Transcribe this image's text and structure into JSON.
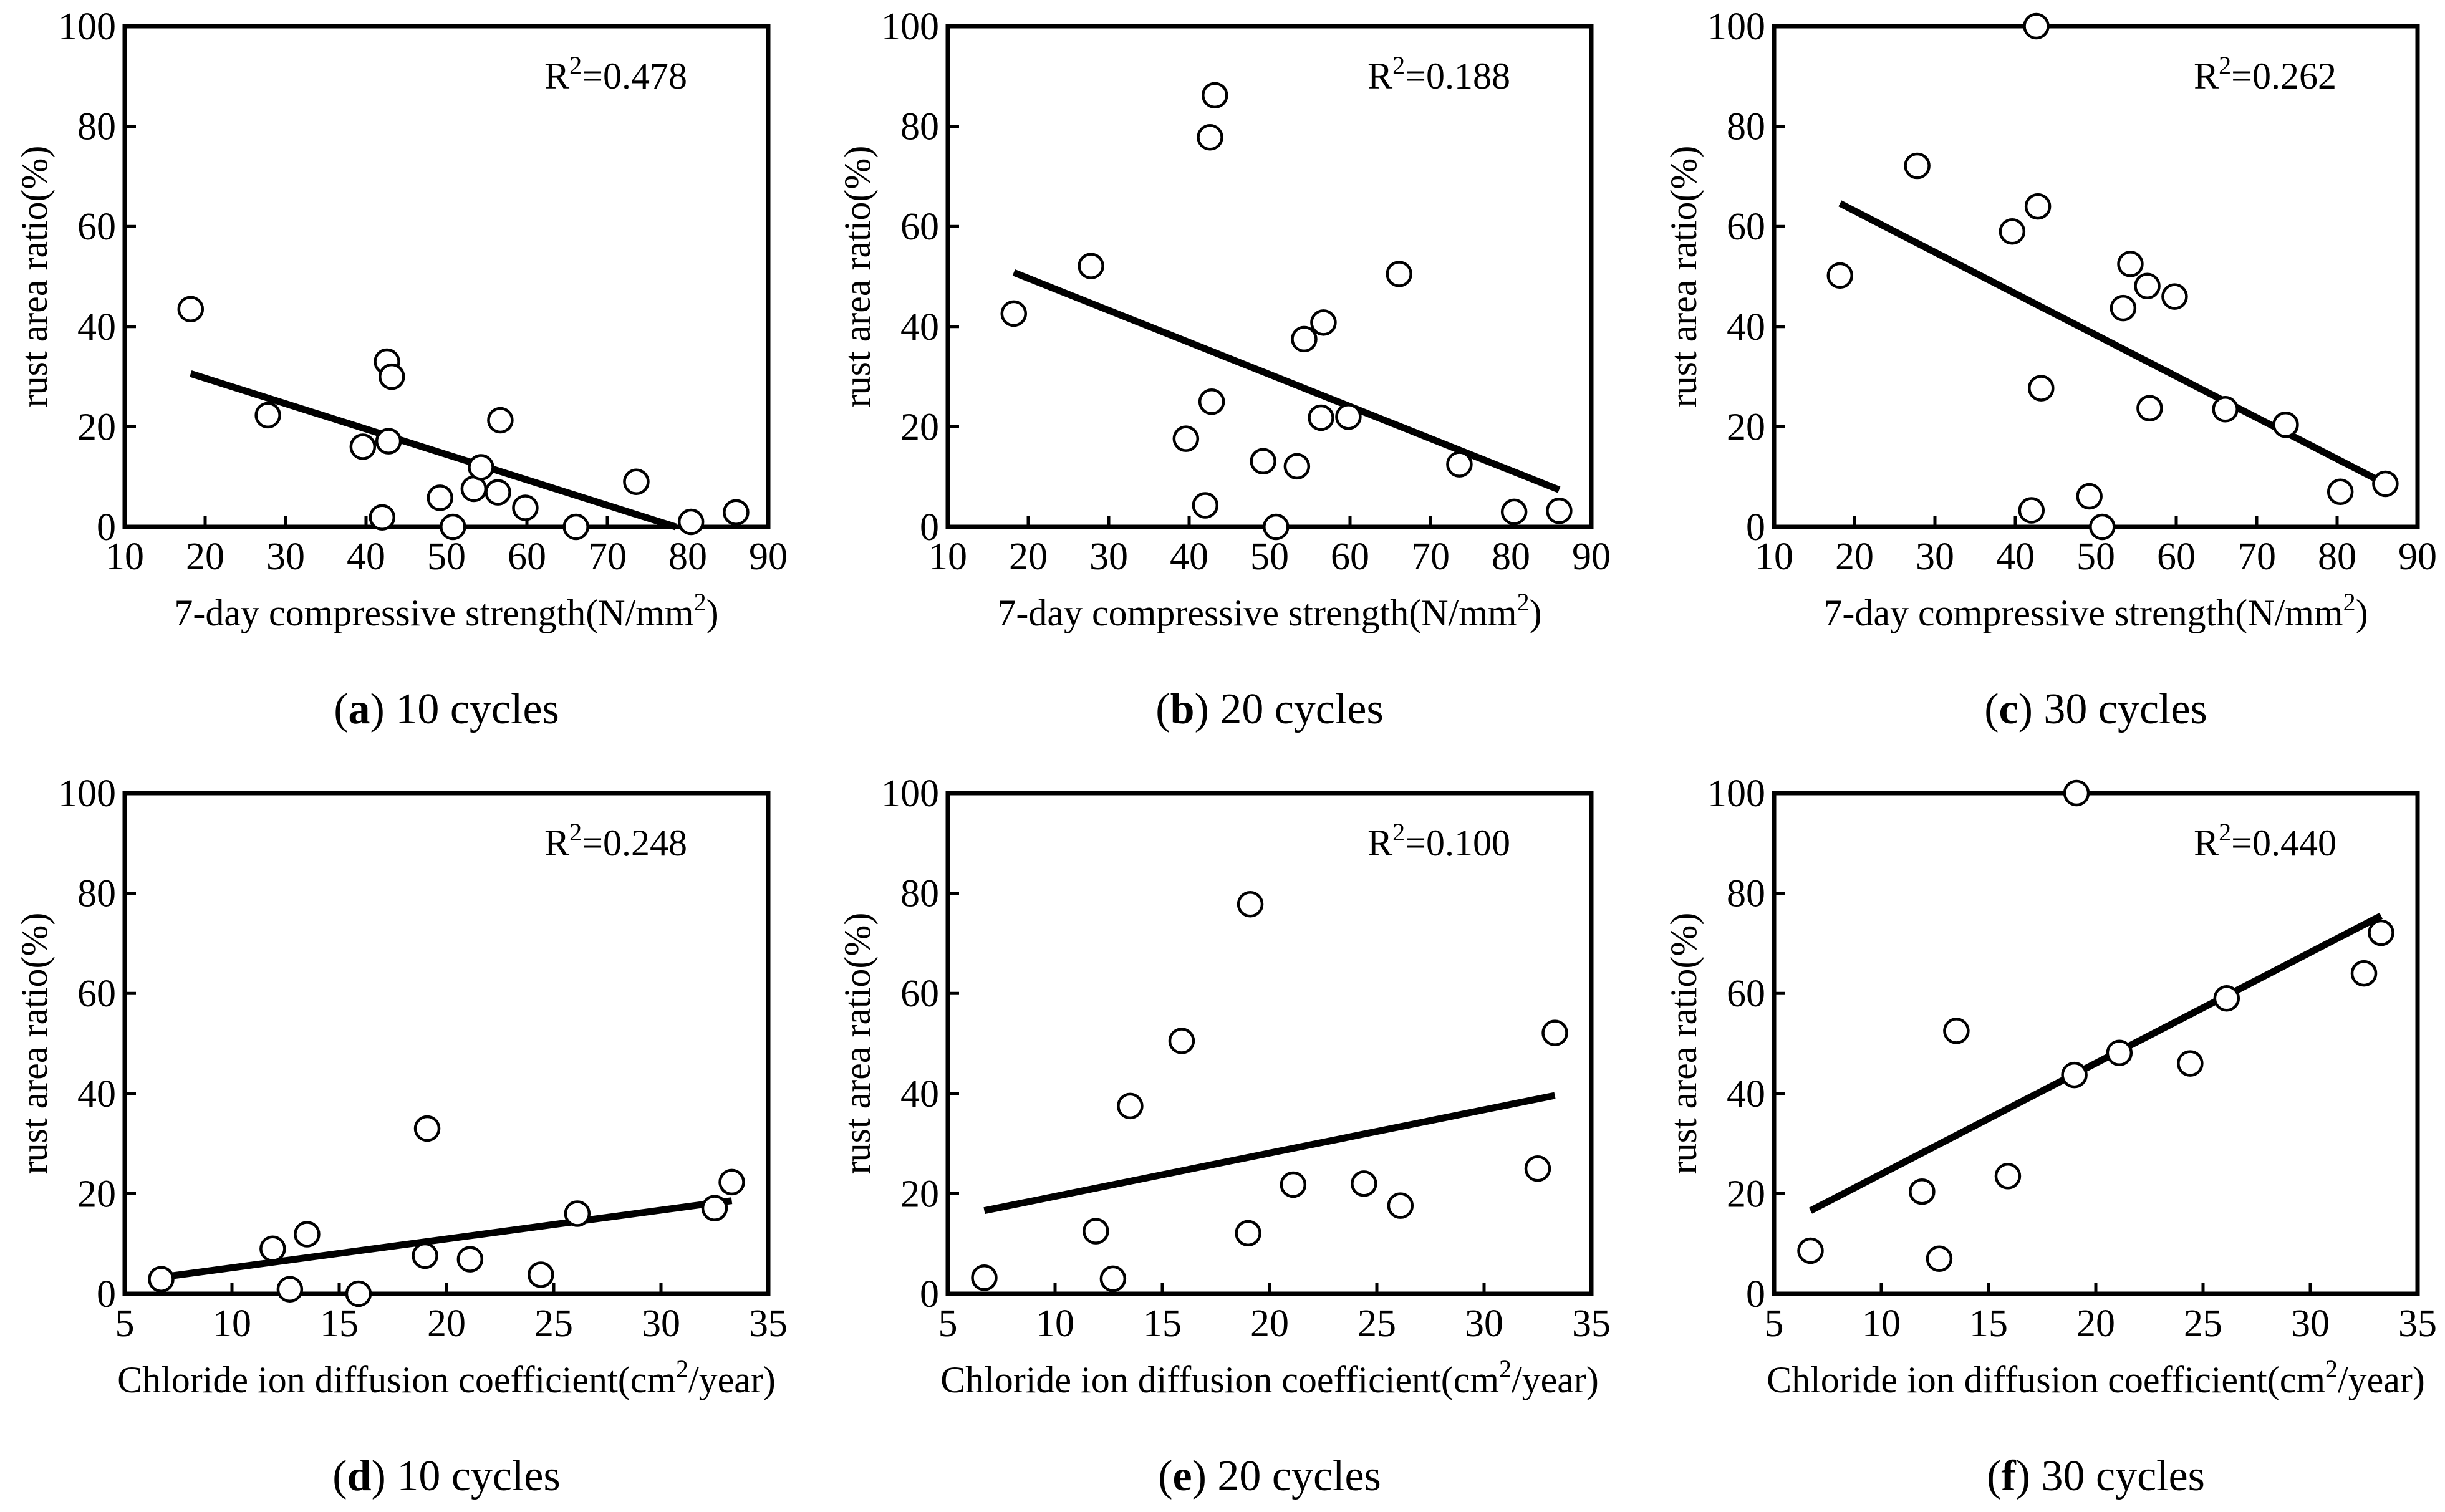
{
  "figure": {
    "panels": [
      {
        "panel_letter": "a",
        "caption_rest": " 10 cycles",
        "r2_prefix": "R",
        "r2_exp": "2",
        "r2_value": "=0.478"
      },
      {
        "panel_letter": "b",
        "caption_rest": " 20 cycles",
        "r2_prefix": "R",
        "r2_exp": "2",
        "r2_value": "=0.188"
      },
      {
        "panel_letter": "c",
        "caption_rest": " 30 cycles",
        "r2_prefix": "R",
        "r2_exp": "2",
        "r2_value": "=0.262"
      },
      {
        "panel_letter": "d",
        "caption_rest": " 10 cycles",
        "r2_prefix": "R",
        "r2_exp": "2",
        "r2_value": "=0.248"
      },
      {
        "panel_letter": "e",
        "caption_rest": " 20 cycles",
        "r2_prefix": "R",
        "r2_exp": "2",
        "r2_value": "=0.100"
      },
      {
        "panel_letter": "f",
        "caption_rest": " 30 cycles",
        "r2_prefix": "R",
        "r2_exp": "2",
        "r2_value": "=0.440"
      }
    ]
  },
  "chart_data": [
    {
      "type": "scatter",
      "panel": "a",
      "caption": "(a) 10 cycles",
      "r2": "R2=0.478",
      "xlabel": "7-day compressive strength(N/mm2)",
      "xlabel_main": "7-day compressive strength(N/mm",
      "xlabel_sup": "2",
      "xlabel_end": ")",
      "ylabel": "rust area ratio(%)",
      "xlim": [
        10,
        90
      ],
      "ylim": [
        0,
        100
      ],
      "xticks": [
        10,
        20,
        30,
        40,
        50,
        60,
        70,
        80,
        90
      ],
      "yticks": [
        0,
        20,
        40,
        60,
        80,
        100
      ],
      "x": [
        18.2,
        27.8,
        39.6,
        42,
        42.6,
        42.8,
        43.2,
        49.2,
        50.8,
        53.4,
        54.3,
        56.4,
        56.7,
        59.8,
        66.1,
        73.6,
        80.4,
        86.0
      ],
      "y": [
        43.5,
        22.3,
        16.0,
        1.9,
        33.0,
        17.1,
        30.0,
        5.8,
        0.0,
        7.6,
        11.9,
        6.9,
        21.3,
        3.8,
        0.0,
        9.0,
        1.0,
        2.9
      ],
      "fit": {
        "x": [
          18.2,
          78.5
        ],
        "y": [
          30.6,
          0.0
        ]
      }
    },
    {
      "type": "scatter",
      "panel": "b",
      "caption": "(b) 20 cycles",
      "r2": "R2=0.188",
      "xlabel": "7-day compressive strength(N/mm2)",
      "xlabel_main": "7-day compressive strength(N/mm",
      "xlabel_sup": "2",
      "xlabel_end": ")",
      "ylabel": "rust area ratio(%)",
      "xlim": [
        10,
        90
      ],
      "ylim": [
        0,
        100
      ],
      "xticks": [
        10,
        20,
        30,
        40,
        50,
        60,
        70,
        80,
        90
      ],
      "yticks": [
        0,
        20,
        40,
        60,
        80,
        100
      ],
      "x": [
        18.2,
        27.8,
        39.6,
        42.0,
        42.6,
        42.8,
        43.2,
        49.2,
        50.8,
        53.4,
        54.3,
        56.4,
        56.7,
        59.8,
        66.1,
        73.6,
        80.4,
        86.0
      ],
      "y": [
        42.6,
        52.1,
        17.6,
        4.3,
        77.8,
        25.0,
        86.2,
        13.1,
        0.0,
        12.1,
        37.5,
        21.8,
        40.8,
        22.0,
        50.5,
        12.5,
        3.0,
        3.2
      ],
      "fit": {
        "x": [
          18.2,
          86.0
        ],
        "y": [
          50.8,
          7.4
        ]
      }
    },
    {
      "type": "scatter",
      "panel": "c",
      "caption": "(c) 30 cycles",
      "r2": "R2=0.262",
      "xlabel": "7-day compressive strength(N/mm2)",
      "xlabel_main": "7-day compressive strength(N/mm",
      "xlabel_sup": "2",
      "xlabel_end": ")",
      "ylabel": "rust area ratio(%)",
      "xlim": [
        10,
        90
      ],
      "ylim": [
        0,
        100
      ],
      "xticks": [
        10,
        20,
        30,
        40,
        50,
        60,
        70,
        80,
        90
      ],
      "yticks": [
        0,
        20,
        40,
        60,
        80,
        100
      ],
      "x": [
        18.2,
        27.8,
        39.6,
        42.0,
        42.6,
        42.8,
        43.2,
        49.2,
        50.8,
        53.4,
        54.3,
        56.4,
        56.7,
        59.8,
        66.1,
        73.6,
        80.4,
        86.0
      ],
      "y": [
        50.2,
        72.1,
        59.0,
        3.3,
        100.0,
        64.0,
        27.7,
        6.1,
        0.0,
        43.7,
        52.5,
        48.1,
        23.7,
        46.0,
        23.5,
        20.4,
        7.0,
        8.6
      ],
      "fit": {
        "x": [
          18.2,
          86.0
        ],
        "y": [
          64.6,
          8.6
        ]
      }
    },
    {
      "type": "scatter",
      "panel": "d",
      "caption": "(d) 10 cycles",
      "r2": "R2=0.248",
      "xlabel": "Chloride ion diffusion coefficient(cm2/year)",
      "xlabel_main": "Chloride ion diffusion coefficient(cm",
      "xlabel_sup": "2",
      "xlabel_end": "/year)",
      "ylabel": "rust area ratio(%)",
      "xlim": [
        5,
        35
      ],
      "ylim": [
        0,
        100
      ],
      "xticks": [
        5,
        10,
        15,
        20,
        25,
        30,
        35
      ],
      "yticks": [
        0,
        20,
        40,
        60,
        80,
        100
      ],
      "x": [
        6.7,
        11.9,
        12.7,
        13.5,
        15.9,
        19.0,
        19.1,
        21.1,
        24.4,
        26.1,
        32.5,
        33.3
      ],
      "y": [
        2.9,
        9.0,
        0.9,
        11.9,
        0.0,
        7.6,
        33.0,
        6.9,
        3.8,
        16.0,
        17.1,
        22.3
      ],
      "fit": {
        "x": [
          6.7,
          33.3
        ],
        "y": [
          3.3,
          18.6
        ]
      }
    },
    {
      "type": "scatter",
      "panel": "e",
      "caption": "(e) 20 cycles",
      "r2": "R2=0.100",
      "xlabel": "Chloride ion diffusion coefficient(cm2/year)",
      "xlabel_main": "Chloride ion diffusion coefficient(cm",
      "xlabel_sup": "2",
      "xlabel_end": "/year)",
      "ylabel": "rust area ratio(%)",
      "xlim": [
        5,
        35
      ],
      "ylim": [
        0,
        100
      ],
      "xticks": [
        5,
        10,
        15,
        20,
        25,
        30,
        35
      ],
      "yticks": [
        0,
        20,
        40,
        60,
        80,
        100
      ],
      "x": [
        6.7,
        11.9,
        12.7,
        13.5,
        15.9,
        19.0,
        19.1,
        21.1,
        24.4,
        26.1,
        32.5,
        33.3
      ],
      "y": [
        3.2,
        12.5,
        3.0,
        37.5,
        50.5,
        12.1,
        77.8,
        21.8,
        22.0,
        17.6,
        25.0,
        52.1
      ],
      "fit": {
        "x": [
          6.7,
          33.3
        ],
        "y": [
          16.6,
          39.6
        ]
      }
    },
    {
      "type": "scatter",
      "panel": "f",
      "caption": "(f) 30 cycles",
      "r2": "R2=0.440",
      "xlabel": "Chloride ion diffusion coefficient(cm2/year)",
      "xlabel_main": "Chloride ion diffusion coefficient(cm",
      "xlabel_sup": "2",
      "xlabel_end": "/year)",
      "ylabel": "rust area ratio(%)",
      "xlim": [
        5,
        35
      ],
      "ylim": [
        0,
        100
      ],
      "xticks": [
        5,
        10,
        15,
        20,
        25,
        30,
        35
      ],
      "yticks": [
        0,
        20,
        40,
        60,
        80,
        100
      ],
      "x": [
        6.7,
        11.9,
        12.7,
        13.5,
        15.9,
        19.0,
        19.1,
        21.1,
        24.4,
        26.1,
        32.5,
        33.3
      ],
      "y": [
        8.6,
        20.4,
        7.0,
        52.5,
        23.5,
        43.7,
        100.0,
        48.1,
        46.0,
        59.0,
        64.0,
        72.1
      ],
      "fit": {
        "x": [
          6.7,
          33.3
        ],
        "y": [
          16.6,
          75.5
        ]
      }
    }
  ]
}
